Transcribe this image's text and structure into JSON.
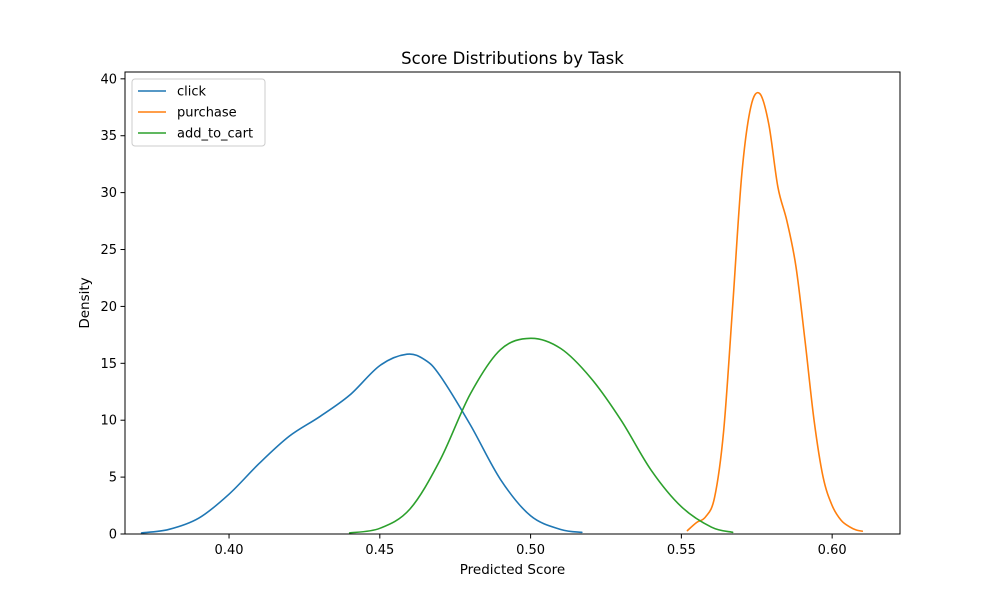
{
  "chart_data": {
    "type": "line",
    "title": "Score Distributions by Task",
    "xlabel": "Predicted Score",
    "ylabel": "Density",
    "xlim": [
      0.3655,
      0.6225
    ],
    "ylim": [
      0,
      40.6
    ],
    "x_ticks": [
      0.4,
      0.45,
      0.5,
      0.55,
      0.6
    ],
    "x_tick_labels": [
      "0.40",
      "0.45",
      "0.50",
      "0.55",
      "0.60"
    ],
    "y_ticks": [
      0,
      5,
      10,
      15,
      20,
      25,
      30,
      35,
      40
    ],
    "y_tick_labels": [
      "0",
      "5",
      "10",
      "15",
      "20",
      "25",
      "30",
      "35",
      "40"
    ],
    "grid": false,
    "legend_position": "upper-left",
    "series": [
      {
        "name": "click",
        "color": "#1f77b4",
        "x": [
          0.371,
          0.38,
          0.39,
          0.4,
          0.41,
          0.42,
          0.43,
          0.44,
          0.45,
          0.459,
          0.465,
          0.47,
          0.48,
          0.49,
          0.5,
          0.51,
          0.517
        ],
        "y": [
          0.1,
          0.4,
          1.4,
          3.5,
          6.2,
          8.6,
          10.3,
          12.2,
          14.8,
          15.8,
          15.3,
          13.9,
          9.6,
          4.8,
          1.6,
          0.4,
          0.15
        ]
      },
      {
        "name": "purchase",
        "color": "#ff7f0e",
        "x": [
          0.552,
          0.555,
          0.558,
          0.561,
          0.564,
          0.567,
          0.57,
          0.573,
          0.576,
          0.579,
          0.582,
          0.585,
          0.588,
          0.591,
          0.594,
          0.597,
          0.6,
          0.603,
          0.606,
          0.608,
          0.61
        ],
        "y": [
          0.3,
          1.0,
          1.5,
          3.2,
          9.0,
          20.0,
          31.5,
          37.5,
          38.7,
          36.0,
          30.5,
          27.5,
          23.5,
          17.0,
          10.0,
          5.0,
          2.5,
          1.2,
          0.6,
          0.35,
          0.25
        ]
      },
      {
        "name": "add_to_cart",
        "color": "#2ca02c",
        "x": [
          0.44,
          0.45,
          0.46,
          0.47,
          0.48,
          0.49,
          0.5,
          0.51,
          0.52,
          0.53,
          0.54,
          0.55,
          0.56,
          0.567
        ],
        "y": [
          0.1,
          0.5,
          2.2,
          6.5,
          12.3,
          16.2,
          17.2,
          16.3,
          13.7,
          10.0,
          5.6,
          2.4,
          0.6,
          0.15
        ]
      }
    ]
  }
}
